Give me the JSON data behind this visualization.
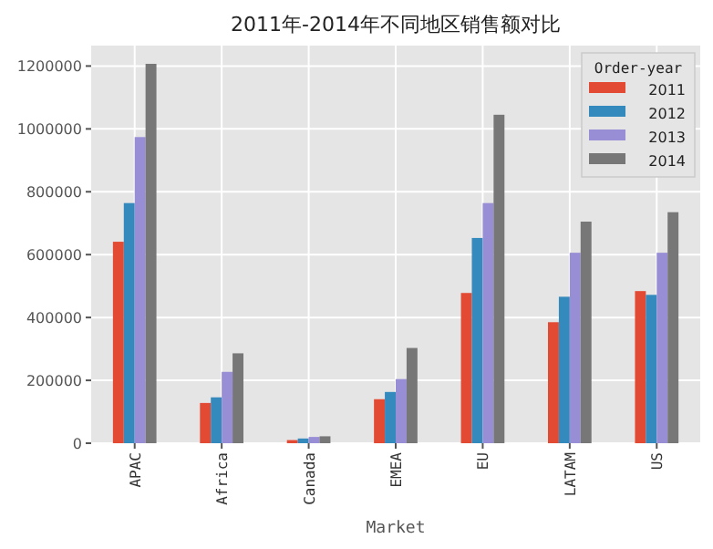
{
  "chart_data": {
    "type": "bar",
    "title": "2011年-2014年不同地区销售额对比",
    "xlabel": "Market",
    "legend_title": "Order-year",
    "categories": [
      "APAC",
      "Africa",
      "Canada",
      "EMEA",
      "EU",
      "LATAM",
      "US"
    ],
    "series": [
      {
        "name": "2011",
        "color": "#e24a33",
        "values": [
          641000,
          128000,
          10000,
          140000,
          478000,
          385000,
          484000
        ]
      },
      {
        "name": "2012",
        "color": "#348abd",
        "values": [
          764000,
          146000,
          15000,
          163000,
          653000,
          466000,
          472000
        ]
      },
      {
        "name": "2013",
        "color": "#988ed5",
        "values": [
          974000,
          227000,
          20000,
          204000,
          764000,
          606000,
          606000
        ]
      },
      {
        "name": "2014",
        "color": "#777777",
        "values": [
          1207000,
          286000,
          22000,
          303000,
          1045000,
          705000,
          735000
        ]
      }
    ],
    "ylim": [
      0,
      1265000
    ],
    "yticks": [
      0,
      200000,
      400000,
      600000,
      800000,
      1000000,
      1200000
    ],
    "grid": true,
    "legend": "top right"
  }
}
